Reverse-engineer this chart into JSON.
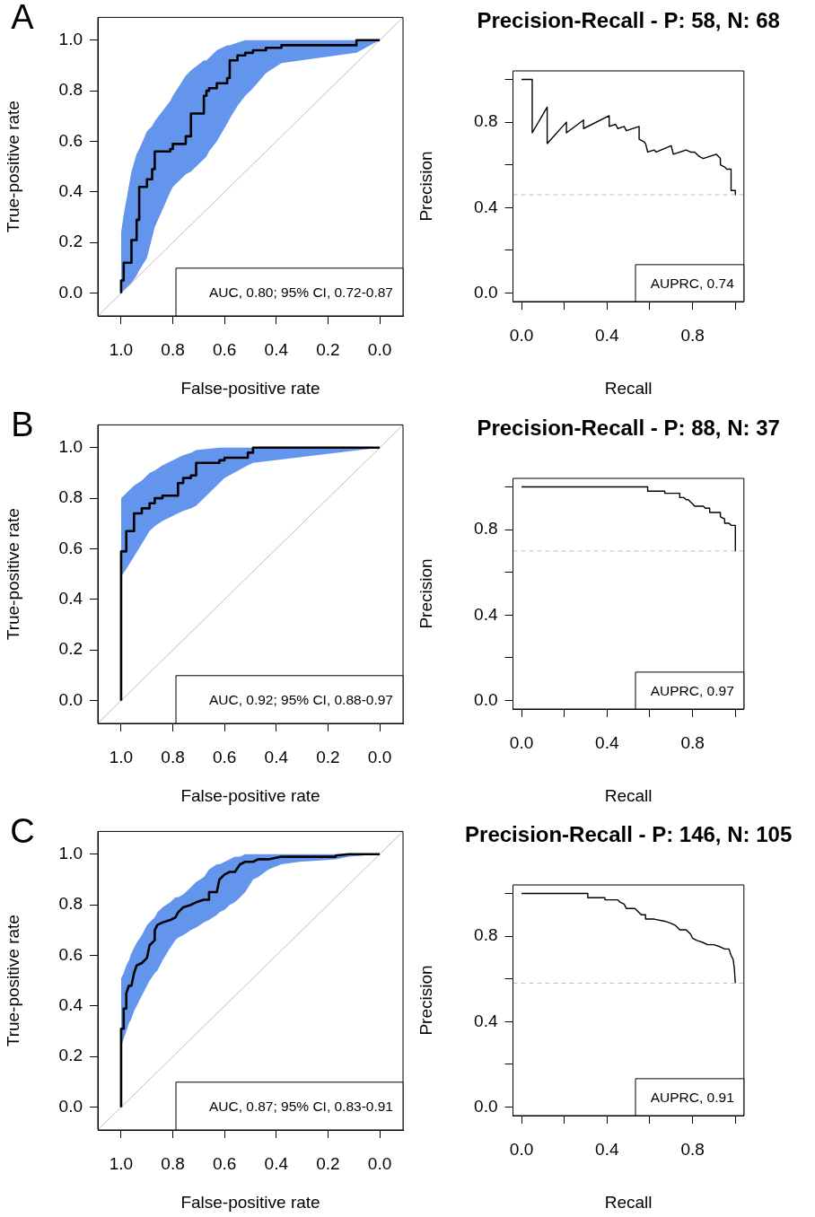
{
  "chart_data": [
    {
      "type": "line",
      "title": "A",
      "xlabel": "False-positive rate",
      "ylabel": "True-positive rate",
      "xlim": [
        1.09,
        -0.09
      ],
      "ylim": [
        -0.09,
        1.09
      ],
      "xticks": [
        {
          "value": 1,
          "label": "1.0"
        },
        {
          "value": 0.8,
          "label": "0.8"
        },
        {
          "value": 0.6,
          "label": "0.6"
        },
        {
          "value": 0.4,
          "label": "0.4"
        },
        {
          "value": 0.2,
          "label": "0.2"
        },
        {
          "value": 0,
          "label": "0.0"
        }
      ],
      "yticks": [
        {
          "value": 0,
          "label": "0.0"
        },
        {
          "value": 0.2,
          "label": "0.2"
        },
        {
          "value": 0.4,
          "label": "0.4"
        },
        {
          "value": 0.6,
          "label": "0.6"
        },
        {
          "value": 0.8,
          "label": "0.8"
        },
        {
          "value": 1,
          "label": "1.0"
        }
      ],
      "marker": "none",
      "annotations": [
        "AUC, 0.80; 95% CI, 0.72-0.87"
      ],
      "series": [
        {
          "type": "line",
          "color": "#000000",
          "upper": [
            0.24,
            0.24,
            0.31,
            0.31,
            0.48,
            0.48,
            0.55,
            0.55,
            0.57,
            0.57,
            0.64,
            0.64,
            0.66,
            0.66,
            0.68,
            0.68,
            0.76,
            0.76,
            0.78,
            0.78,
            0.86,
            0.86,
            0.88,
            0.88,
            0.92,
            0.92,
            0.92,
            0.92,
            0.93,
            0.93,
            0.96,
            0.96,
            0.98,
            0.98,
            0.98,
            0.98,
            0.99,
            0.99,
            1.0,
            1.0,
            1.0,
            1.0,
            1.0,
            1.0,
            1.0,
            1.0,
            1.0,
            1.0,
            1.0
          ],
          "lower": [
            0.0,
            0.0,
            0.01,
            0.01,
            0.04,
            0.04,
            0.07,
            0.07,
            0.09,
            0.09,
            0.14,
            0.14,
            0.22,
            0.22,
            0.26,
            0.26,
            0.4,
            0.4,
            0.42,
            0.42,
            0.47,
            0.47,
            0.48,
            0.48,
            0.53,
            0.53,
            0.54,
            0.54,
            0.56,
            0.56,
            0.6,
            0.6,
            0.67,
            0.67,
            0.69,
            0.69,
            0.74,
            0.74,
            0.78,
            0.78,
            0.81,
            0.81,
            0.87,
            0.87,
            0.91,
            0.91,
            0.95,
            0.95,
            1.0
          ],
          "x": [
            1.0,
            1.0,
            0.99,
            0.99,
            0.96,
            0.96,
            0.94,
            0.94,
            0.93,
            0.93,
            0.9,
            0.9,
            0.88,
            0.88,
            0.87,
            0.87,
            0.81,
            0.81,
            0.8,
            0.8,
            0.75,
            0.75,
            0.73,
            0.73,
            0.68,
            0.68,
            0.67,
            0.67,
            0.66,
            0.66,
            0.63,
            0.63,
            0.59,
            0.59,
            0.58,
            0.58,
            0.55,
            0.55,
            0.52,
            0.52,
            0.49,
            0.49,
            0.44,
            0.44,
            0.38,
            0.38,
            0.09,
            0.09,
            0.0
          ],
          "values": [
            0.0,
            0.05,
            0.05,
            0.12,
            0.12,
            0.21,
            0.21,
            0.29,
            0.29,
            0.42,
            0.42,
            0.45,
            0.45,
            0.49,
            0.49,
            0.56,
            0.56,
            0.57,
            0.57,
            0.59,
            0.59,
            0.62,
            0.62,
            0.71,
            0.71,
            0.78,
            0.78,
            0.8,
            0.8,
            0.81,
            0.81,
            0.83,
            0.83,
            0.85,
            0.85,
            0.92,
            0.92,
            0.94,
            0.94,
            0.95,
            0.95,
            0.96,
            0.96,
            0.97,
            0.97,
            0.98,
            0.98,
            1.0,
            1.0
          ]
        },
        {
          "type": "line",
          "color": "#bebebe",
          "x": [
            1.09,
            -0.09
          ],
          "values": [
            -0.09,
            1.09
          ]
        }
      ]
    },
    {
      "type": "line",
      "title": "Precision-Recall - P: 58, N: 68",
      "xlabel": "Recall",
      "ylabel": "Precision",
      "xlim": [
        -0.04,
        1.04
      ],
      "ylim": [
        -0.04,
        1.04
      ],
      "xticks": [
        {
          "value": 0,
          "label": "0.0"
        },
        {
          "value": 0.2,
          "label": null
        },
        {
          "value": 0.4,
          "label": "0.4"
        },
        {
          "value": 0.6,
          "label": null
        },
        {
          "value": 0.8,
          "label": "0.8"
        },
        {
          "value": 1,
          "label": null
        }
      ],
      "yticks": [
        {
          "value": 0,
          "label": "0.0"
        },
        {
          "value": 0.2,
          "label": null
        },
        {
          "value": 0.4,
          "label": "0.4"
        },
        {
          "value": 0.6,
          "label": null
        },
        {
          "value": 0.8,
          "label": "0.8"
        },
        {
          "value": 1,
          "label": null
        }
      ],
      "marker": "none",
      "annotations": [
        "AUPRC, 0.74"
      ],
      "ref_lines": [
        {
          "axis": "y",
          "value": 0.46,
          "color": "#bebebe",
          "line_style": "dashed"
        }
      ],
      "series": [
        {
          "type": "line",
          "color": "#000000",
          "x": [
            0,
            0.05,
            0.05,
            0.12,
            0.12,
            0.21,
            0.21,
            0.29,
            0.29,
            0.41,
            0.41,
            0.44,
            0.45,
            0.48,
            0.49,
            0.55,
            0.55,
            0.57,
            0.58,
            0.59,
            0.62,
            0.63,
            0.7,
            0.71,
            0.77,
            0.79,
            0.81,
            0.83,
            0.85,
            0.91,
            0.93,
            0.93,
            0.95,
            0.96,
            0.98,
            0.98,
            1.0,
            1.0
          ],
          "values": [
            1.0,
            1.0,
            0.75,
            0.87,
            0.7,
            0.8,
            0.75,
            0.81,
            0.77,
            0.83,
            0.78,
            0.79,
            0.77,
            0.78,
            0.76,
            0.78,
            0.72,
            0.71,
            0.7,
            0.66,
            0.67,
            0.66,
            0.69,
            0.65,
            0.67,
            0.66,
            0.66,
            0.64,
            0.63,
            0.65,
            0.63,
            0.6,
            0.59,
            0.58,
            0.58,
            0.48,
            0.48,
            0.46
          ]
        }
      ]
    },
    {
      "type": "line",
      "title": "B",
      "xlabel": "False-positive rate",
      "ylabel": "True-positive rate",
      "xlim": [
        1.09,
        -0.09
      ],
      "ylim": [
        -0.09,
        1.09
      ],
      "xticks": [
        {
          "value": 1,
          "label": "1.0"
        },
        {
          "value": 0.8,
          "label": "0.8"
        },
        {
          "value": 0.6,
          "label": "0.6"
        },
        {
          "value": 0.4,
          "label": "0.4"
        },
        {
          "value": 0.2,
          "label": "0.2"
        },
        {
          "value": 0,
          "label": "0.0"
        }
      ],
      "yticks": [
        {
          "value": 0,
          "label": "0.0"
        },
        {
          "value": 0.2,
          "label": "0.2"
        },
        {
          "value": 0.4,
          "label": "0.4"
        },
        {
          "value": 0.6,
          "label": "0.6"
        },
        {
          "value": 0.8,
          "label": "0.8"
        },
        {
          "value": 1,
          "label": "1.0"
        }
      ],
      "marker": "none",
      "annotations": [
        "AUC, 0.92; 95% CI, 0.88-0.97"
      ],
      "series": [
        {
          "type": "line",
          "color": "#000000",
          "upper": [
            0.8,
            0.8,
            0.82,
            0.82,
            0.85,
            0.85,
            0.87,
            0.87,
            0.9,
            0.9,
            0.91,
            0.91,
            0.93,
            0.93,
            0.96,
            0.96,
            0.97,
            0.97,
            0.98,
            0.98,
            0.99,
            0.99,
            1.0,
            1.0,
            1.0,
            1.0,
            1.0,
            1.0,
            1.0,
            1.0,
            1.0
          ],
          "lower": [
            0.49,
            0.49,
            0.52,
            0.52,
            0.57,
            0.57,
            0.62,
            0.62,
            0.67,
            0.67,
            0.69,
            0.69,
            0.71,
            0.71,
            0.74,
            0.74,
            0.75,
            0.75,
            0.76,
            0.76,
            0.77,
            0.77,
            0.86,
            0.86,
            0.88,
            0.88,
            0.93,
            0.93,
            0.94,
            0.94,
            1.0
          ],
          "x": [
            1.0,
            1.0,
            0.98,
            0.98,
            0.95,
            0.95,
            0.92,
            0.92,
            0.89,
            0.89,
            0.87,
            0.87,
            0.84,
            0.84,
            0.78,
            0.78,
            0.76,
            0.76,
            0.73,
            0.73,
            0.71,
            0.71,
            0.62,
            0.62,
            0.6,
            0.6,
            0.51,
            0.51,
            0.49,
            0.49,
            0.0
          ],
          "values": [
            0.0,
            0.59,
            0.59,
            0.67,
            0.67,
            0.74,
            0.74,
            0.76,
            0.76,
            0.78,
            0.78,
            0.8,
            0.8,
            0.81,
            0.81,
            0.86,
            0.86,
            0.88,
            0.88,
            0.89,
            0.89,
            0.94,
            0.94,
            0.95,
            0.95,
            0.96,
            0.96,
            0.98,
            0.98,
            1.0,
            1.0
          ]
        },
        {
          "type": "line",
          "color": "#bebebe",
          "x": [
            1.09,
            -0.09
          ],
          "values": [
            -0.09,
            1.09
          ]
        }
      ]
    },
    {
      "type": "line",
      "title": "Precision-Recall - P: 88, N: 37",
      "xlabel": "Recall",
      "ylabel": "Precision",
      "xlim": [
        -0.04,
        1.04
      ],
      "ylim": [
        -0.04,
        1.04
      ],
      "xticks": [
        {
          "value": 0,
          "label": "0.0"
        },
        {
          "value": 0.2,
          "label": null
        },
        {
          "value": 0.4,
          "label": "0.4"
        },
        {
          "value": 0.6,
          "label": null
        },
        {
          "value": 0.8,
          "label": "0.8"
        },
        {
          "value": 1,
          "label": null
        }
      ],
      "yticks": [
        {
          "value": 0,
          "label": "0.0"
        },
        {
          "value": 0.2,
          "label": null
        },
        {
          "value": 0.4,
          "label": "0.4"
        },
        {
          "value": 0.6,
          "label": null
        },
        {
          "value": 0.8,
          "label": "0.8"
        },
        {
          "value": 1,
          "label": null
        }
      ],
      "marker": "none",
      "annotations": [
        "AUPRC, 0.97"
      ],
      "ref_lines": [
        {
          "axis": "y",
          "value": 0.7,
          "color": "#bebebe",
          "line_style": "dashed"
        }
      ],
      "series": [
        {
          "type": "line",
          "color": "#000000",
          "x": [
            0,
            0.59,
            0.59,
            0.67,
            0.67,
            0.74,
            0.74,
            0.76,
            0.77,
            0.78,
            0.79,
            0.8,
            0.81,
            0.85,
            0.86,
            0.88,
            0.88,
            0.9,
            0.93,
            0.93,
            0.95,
            0.95,
            0.97,
            0.98,
            1.0,
            1.0
          ],
          "values": [
            1.0,
            1.0,
            0.98,
            0.98,
            0.97,
            0.97,
            0.95,
            0.95,
            0.94,
            0.94,
            0.93,
            0.92,
            0.91,
            0.91,
            0.9,
            0.9,
            0.88,
            0.88,
            0.88,
            0.86,
            0.85,
            0.83,
            0.83,
            0.82,
            0.82,
            0.7
          ]
        }
      ]
    },
    {
      "type": "line",
      "title": "C",
      "xlabel": "False-positive rate",
      "ylabel": "True-positive rate",
      "xlim": [
        1.09,
        -0.09
      ],
      "ylim": [
        -0.09,
        1.09
      ],
      "xticks": [
        {
          "value": 1,
          "label": "1.0"
        },
        {
          "value": 0.8,
          "label": "0.8"
        },
        {
          "value": 0.6,
          "label": "0.6"
        },
        {
          "value": 0.4,
          "label": "0.4"
        },
        {
          "value": 0.2,
          "label": "0.2"
        },
        {
          "value": 0,
          "label": "0.0"
        }
      ],
      "yticks": [
        {
          "value": 0,
          "label": "0.0"
        },
        {
          "value": 0.2,
          "label": "0.2"
        },
        {
          "value": 0.4,
          "label": "0.4"
        },
        {
          "value": 0.6,
          "label": "0.6"
        },
        {
          "value": 0.8,
          "label": "0.8"
        },
        {
          "value": 1,
          "label": "1.0"
        }
      ],
      "marker": "none",
      "annotations": [
        "AUC, 0.87; 95% CI, 0.83-0.91"
      ],
      "series": [
        {
          "type": "line",
          "color": "#000000",
          "upper": [
            0.51,
            0.51,
            0.53,
            0.53,
            0.56,
            0.56,
            0.58,
            0.61,
            0.63,
            0.65,
            0.68,
            0.72,
            0.73,
            0.75,
            0.75,
            0.77,
            0.79,
            0.81,
            0.83,
            0.83,
            0.84,
            0.87,
            0.89,
            0.91,
            0.94,
            0.94,
            0.96,
            0.96,
            0.97,
            0.98,
            0.99,
            0.99,
            1.0,
            1.0,
            1.0,
            1.0,
            1.0,
            1.0,
            1.0,
            1.0,
            1.0,
            1.0
          ],
          "lower": [
            0.24,
            0.24,
            0.27,
            0.27,
            0.3,
            0.3,
            0.33,
            0.35,
            0.38,
            0.4,
            0.44,
            0.48,
            0.5,
            0.53,
            0.53,
            0.54,
            0.58,
            0.63,
            0.66,
            0.67,
            0.68,
            0.7,
            0.71,
            0.73,
            0.74,
            0.74,
            0.76,
            0.77,
            0.78,
            0.8,
            0.81,
            0.83,
            0.85,
            0.9,
            0.91,
            0.94,
            0.96,
            0.97,
            0.98,
            0.98,
            0.99,
            1.0
          ],
          "x": [
            1.0,
            1.0,
            0.99,
            0.99,
            0.98,
            0.98,
            0.97,
            0.96,
            0.95,
            0.94,
            0.92,
            0.9,
            0.89,
            0.87,
            0.87,
            0.86,
            0.84,
            0.81,
            0.79,
            0.78,
            0.76,
            0.73,
            0.71,
            0.68,
            0.66,
            0.66,
            0.63,
            0.62,
            0.6,
            0.58,
            0.56,
            0.54,
            0.52,
            0.49,
            0.47,
            0.43,
            0.38,
            0.31,
            0.17,
            0.17,
            0.12,
            0.0
          ],
          "values": [
            0.0,
            0.31,
            0.31,
            0.39,
            0.39,
            0.45,
            0.48,
            0.48,
            0.53,
            0.56,
            0.57,
            0.59,
            0.64,
            0.66,
            0.7,
            0.72,
            0.73,
            0.74,
            0.75,
            0.77,
            0.79,
            0.8,
            0.81,
            0.82,
            0.82,
            0.85,
            0.85,
            0.9,
            0.92,
            0.93,
            0.93,
            0.96,
            0.97,
            0.97,
            0.98,
            0.98,
            0.99,
            0.99,
            0.99,
            0.995,
            1.0,
            1.0
          ]
        },
        {
          "type": "line",
          "color": "#bebebe",
          "x": [
            1.09,
            -0.09
          ],
          "values": [
            -0.09,
            1.09
          ]
        }
      ]
    },
    {
      "type": "line",
      "title": "Precision-Recall - P: 146, N: 105",
      "xlabel": "Recall",
      "ylabel": "Precision",
      "xlim": [
        -0.04,
        1.04
      ],
      "ylim": [
        -0.04,
        1.04
      ],
      "xticks": [
        {
          "value": 0,
          "label": "0.0"
        },
        {
          "value": 0.2,
          "label": null
        },
        {
          "value": 0.4,
          "label": "0.4"
        },
        {
          "value": 0.6,
          "label": null
        },
        {
          "value": 0.8,
          "label": "0.8"
        },
        {
          "value": 1,
          "label": null
        }
      ],
      "yticks": [
        {
          "value": 0,
          "label": "0.0"
        },
        {
          "value": 0.2,
          "label": null
        },
        {
          "value": 0.4,
          "label": "0.4"
        },
        {
          "value": 0.6,
          "label": null
        },
        {
          "value": 0.8,
          "label": "0.8"
        },
        {
          "value": 1,
          "label": null
        }
      ],
      "marker": "none",
      "annotations": [
        "AUPRC, 0.91"
      ],
      "ref_lines": [
        {
          "axis": "y",
          "value": 0.58,
          "color": "#bebebe",
          "line_style": "dashed"
        }
      ],
      "series": [
        {
          "type": "line",
          "color": "#000000",
          "x": [
            0,
            0.31,
            0.31,
            0.39,
            0.39,
            0.45,
            0.46,
            0.48,
            0.49,
            0.51,
            0.53,
            0.54,
            0.56,
            0.58,
            0.58,
            0.62,
            0.67,
            0.7,
            0.72,
            0.74,
            0.77,
            0.79,
            0.8,
            0.82,
            0.85,
            0.87,
            0.9,
            0.93,
            0.95,
            0.97,
            0.98,
            0.99,
            0.995,
            1.0
          ],
          "values": [
            1.0,
            1.0,
            0.98,
            0.98,
            0.97,
            0.97,
            0.96,
            0.95,
            0.93,
            0.93,
            0.93,
            0.92,
            0.9,
            0.9,
            0.88,
            0.88,
            0.87,
            0.86,
            0.85,
            0.83,
            0.83,
            0.81,
            0.79,
            0.78,
            0.77,
            0.76,
            0.76,
            0.75,
            0.74,
            0.74,
            0.71,
            0.69,
            0.65,
            0.58
          ]
        }
      ]
    }
  ]
}
